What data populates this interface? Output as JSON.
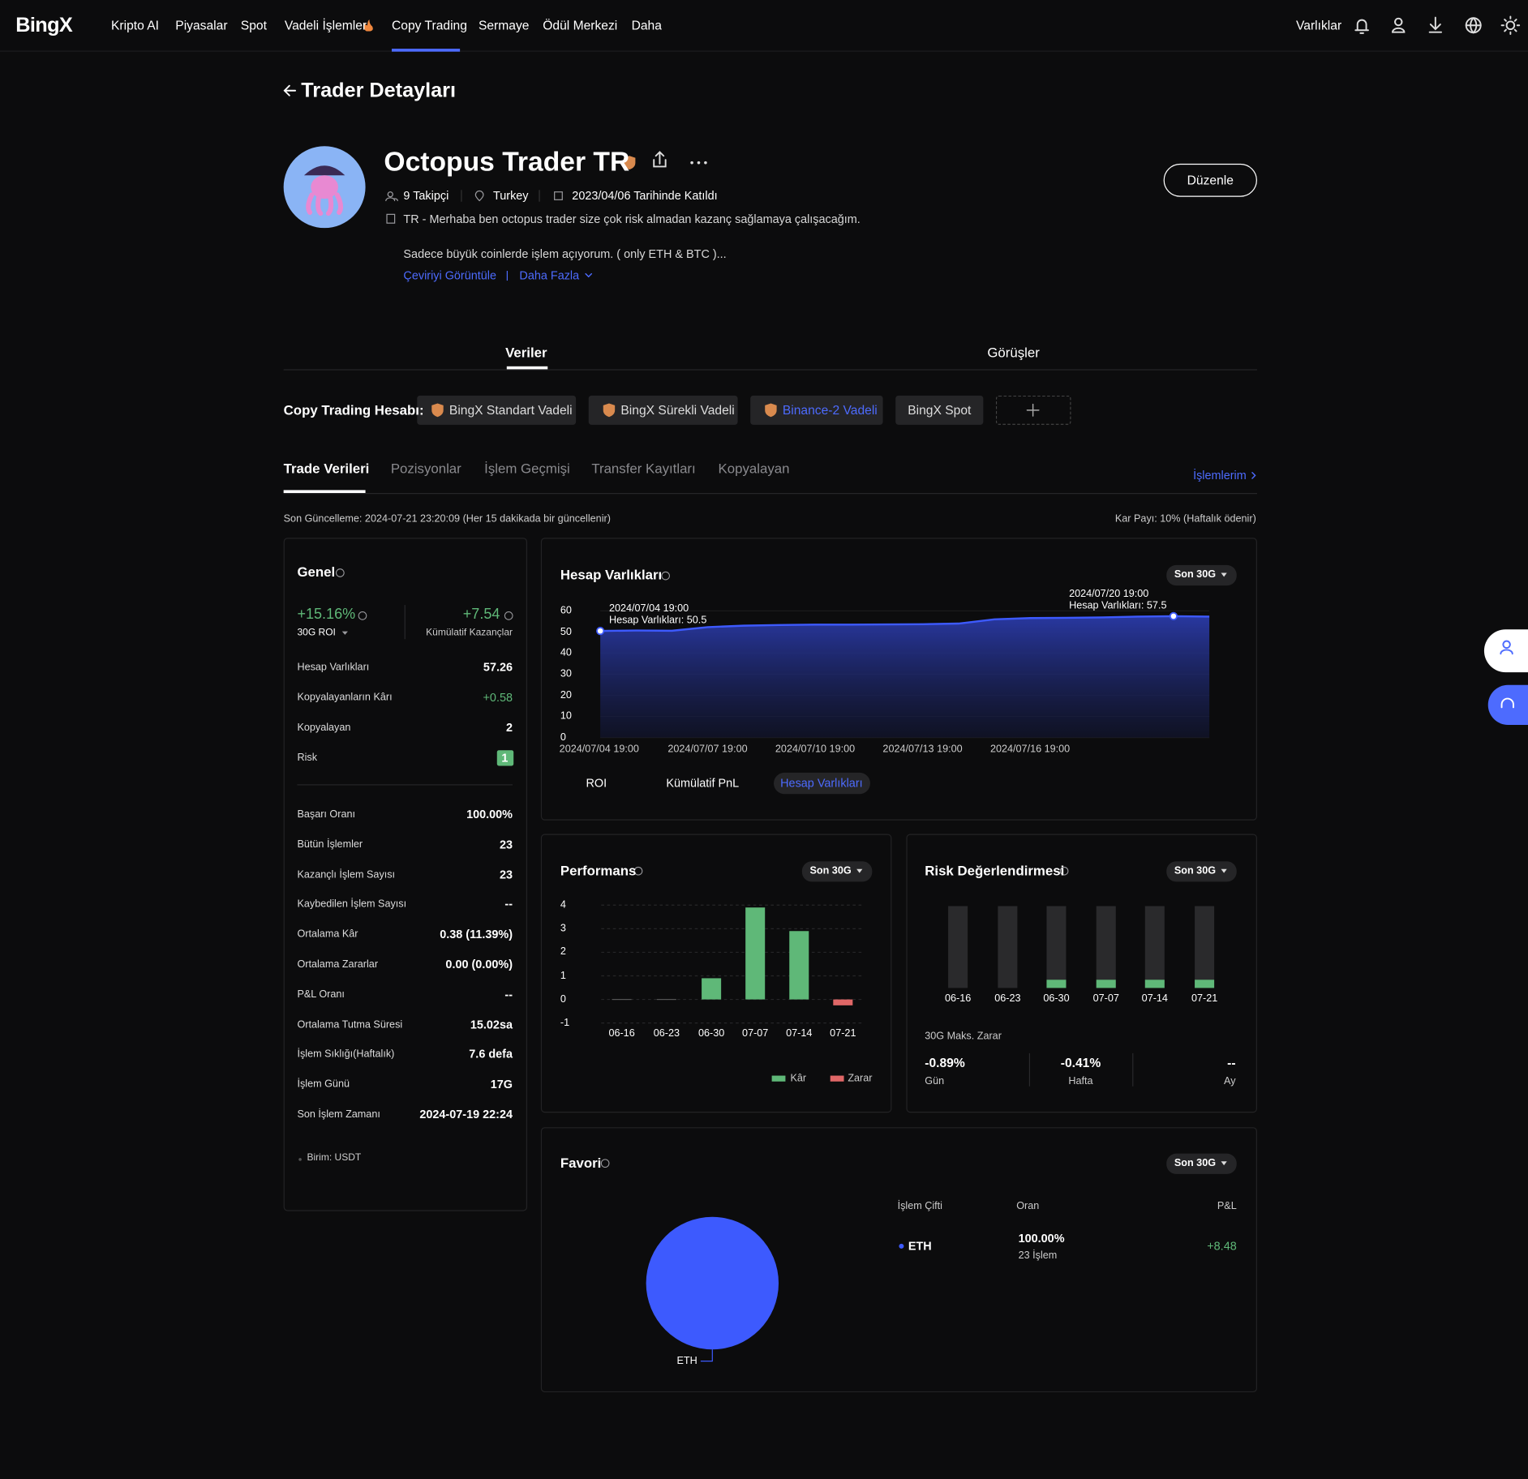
{
  "nav": {
    "logo": "BingX",
    "items": [
      "Kripto AI",
      "Piyasalar",
      "Spot",
      "Vadeli İşlemler",
      "Copy Trading",
      "Sermaye",
      "Ödül Merkezi",
      "Daha"
    ],
    "assets": "Varlıklar"
  },
  "page_title": "Trader Detayları",
  "profile": {
    "name": "Octopus Trader TR",
    "followers": "9 Takipçi",
    "country": "Turkey",
    "joined": "2023/04/06 Tarihinde Katıldı",
    "bio": [
      "TR - Merhaba ben octopus trader size çok risk almadan kazanç sağlamaya çalışacağım.",
      "Sadece büyük coinlerde işlem açıyorum. ( only ETH & BTC )..."
    ],
    "translate": "Çeviriyi Görüntüle",
    "more": "Daha Fazla",
    "edit": "Düzenle"
  },
  "main_tabs": [
    "Veriler",
    "Görüşler"
  ],
  "accounts": {
    "label": "Copy Trading Hesabı:",
    "items": [
      "BingX Standart Vadeli",
      "BingX Sürekli Vadeli",
      "Binance-2 Vadeli",
      "BingX Spot"
    ]
  },
  "sub_tabs": [
    "Trade Verileri",
    "Pozisyonlar",
    "İşlem Geçmişi",
    "Transfer Kayıtları",
    "Kopyalayan"
  ],
  "my_trades": "İşlemlerim",
  "last_update": "Son Güncelleme: 2024-07-21 23:20:09 (Her 15 dakikada bir güncellenir)",
  "profit_share": "Kar Payı: 10% (Haftalık ödenir)",
  "general": {
    "title": "Genel",
    "roi": "+15.16%",
    "roi_label": "30G ROI",
    "cumulative": "+7.54",
    "cumulative_label": "Kümülatif Kazançlar",
    "rows": [
      [
        "Hesap Varlıkları",
        "57.26"
      ],
      [
        "Kopyalayanların Kârı",
        "+0.58"
      ],
      [
        "Kopyalayan",
        "2"
      ],
      [
        "Risk",
        "1"
      ]
    ],
    "stats": [
      [
        "Başarı Oranı",
        "100.00%"
      ],
      [
        "Bütün İşlemler",
        "23"
      ],
      [
        "Kazançlı İşlem Sayısı",
        "23"
      ],
      [
        "Kaybedilen İşlem Sayısı",
        "--"
      ],
      [
        "Ortalama Kâr",
        "0.38 (11.39%)"
      ],
      [
        "Ortalama Zararlar",
        "0.00 (0.00%)"
      ],
      [
        "P&L Oranı",
        "--"
      ],
      [
        "Ortalama Tutma Süresi",
        "15.02sa"
      ],
      [
        "İşlem Sıklığı(Haftalık)",
        "7.6 defa"
      ],
      [
        "İşlem Günü",
        "17G"
      ],
      [
        "Son İşlem Zamanı",
        "2024-07-19 22:24"
      ]
    ],
    "unit": "Birim: USDT"
  },
  "assets_chart": {
    "type": "area",
    "title": "Hesap Varlıkları",
    "period": "Son 30G",
    "color": "#3d5afe",
    "x": [
      "2024/07/04 19:00",
      "2024/07/05 19:00",
      "2024/07/06 19:00",
      "2024/07/07 19:00",
      "2024/07/08 19:00",
      "2024/07/09 19:00",
      "2024/07/10 19:00",
      "2024/07/11 19:00",
      "2024/07/12 19:00",
      "2024/07/13 19:00",
      "2024/07/14 19:00",
      "2024/07/15 19:00",
      "2024/07/16 19:00",
      "2024/07/17 19:00",
      "2024/07/18 19:00",
      "2024/07/19 19:00",
      "2024/07/20 19:00",
      "2024/07/21 19:00"
    ],
    "values": [
      50.5,
      50.7,
      50.6,
      52.3,
      53.0,
      53.3,
      53.5,
      53.5,
      53.6,
      53.7,
      54.0,
      56.0,
      56.6,
      56.7,
      56.9,
      57.3,
      57.5,
      57.3
    ],
    "ylim": [
      0,
      60
    ],
    "yticks": [
      0,
      10,
      20,
      30,
      40,
      50,
      60
    ],
    "xticks": [
      "2024/07/04 19:00",
      "2024/07/07 19:00",
      "2024/07/10 19:00",
      "2024/07/13 19:00",
      "2024/07/16 19:00"
    ],
    "annotations": [
      {
        "x": "2024/07/04 19:00",
        "label": "Hesap Varlıkları: 50.5"
      },
      {
        "x": "2024/07/20 19:00",
        "label": "Hesap Varlıkları: 57.5"
      }
    ],
    "toggles": [
      "ROI",
      "Kümülatif PnL",
      "Hesap Varlıkları"
    ]
  },
  "performance_chart": {
    "type": "bar",
    "title": "Performans",
    "period": "Son 30G",
    "categories": [
      "06-16",
      "06-23",
      "06-30",
      "07-07",
      "07-14",
      "07-21"
    ],
    "series": [
      {
        "name": "Kâr",
        "color": "#5fb878",
        "values": [
          0,
          0,
          0.9,
          3.9,
          2.9,
          null
        ]
      },
      {
        "name": "Zarar",
        "color": "#e06767",
        "values": [
          null,
          null,
          null,
          null,
          null,
          -0.25
        ]
      }
    ],
    "ylim": [
      -1,
      4
    ],
    "yticks": [
      -1,
      0,
      1,
      2,
      3,
      4
    ]
  },
  "risk_chart": {
    "type": "bar",
    "title": "Risk Değerlendirmesi",
    "period": "Son 30G",
    "categories": [
      "06-16",
      "06-23",
      "06-30",
      "07-07",
      "07-14",
      "07-21"
    ],
    "values": [
      0,
      0,
      1,
      1,
      1,
      1
    ],
    "ylim": [
      0,
      10
    ],
    "color": "#5fb878",
    "max_loss": {
      "label": "30G Maks. Zarar",
      "items": [
        {
          "value": "-0.89%",
          "label": "Gün"
        },
        {
          "value": "-0.41%",
          "label": "Hafta"
        },
        {
          "value": "--",
          "label": "Ay"
        }
      ]
    }
  },
  "favorites": {
    "type": "pie",
    "title": "Favori",
    "period": "Son 30G",
    "labels": [
      "ETH"
    ],
    "values": [
      100
    ],
    "colors": [
      "#3d5afe"
    ],
    "table": {
      "headers": [
        "İşlem Çifti",
        "Oran",
        "P&L"
      ],
      "rows": [
        {
          "pair": "ETH",
          "rate": "100.00%",
          "trades": "23 İşlem",
          "pnl": "+8.48"
        }
      ]
    }
  }
}
